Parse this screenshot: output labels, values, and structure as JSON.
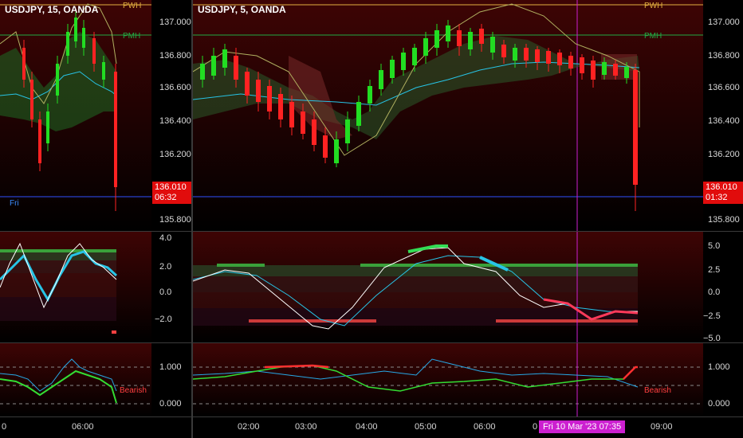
{
  "left": {
    "title": "USDJPY, 15, OANDA",
    "price_axis": [
      "137.000",
      "136.800",
      "136.600",
      "136.400",
      "136.200",
      "135.800"
    ],
    "last_price": "136.010",
    "countdown": "06:32",
    "session_label": "Fri",
    "pwh_label": "PWH",
    "pmh_label": "PMH",
    "osc_axis": [
      "4.0",
      "2.0",
      "0.0",
      "−2.0"
    ],
    "status": "Bearish",
    "bottom_axis": [
      "1.000",
      "0.000"
    ],
    "time_axis": [
      "0",
      "06:00"
    ]
  },
  "right": {
    "title": "USDJPY, 5, OANDA",
    "price_axis": [
      "137.000",
      "136.800",
      "136.600",
      "136.400",
      "136.200",
      "135.800"
    ],
    "last_price": "136.010",
    "countdown": "01:32",
    "pwh_label": "PWH",
    "pmh_label": "PMH",
    "osc_axis": [
      "5.0",
      "2.5",
      "0.0",
      "−2.5",
      "−5.0"
    ],
    "status": "Bearish",
    "bottom_axis": [
      "1.000",
      "0.000"
    ],
    "time_axis": [
      "02:00",
      "03:00",
      "04:00",
      "05:00",
      "06:00",
      "0",
      "09:00"
    ],
    "crosshair_time": "Fri 10 Mar '23   07:35"
  },
  "colors": {
    "bull": "#22dd22",
    "bear": "#ff2222",
    "pwh": "#e3b040",
    "pmh": "#22aa44",
    "osc_white": "#ffffff",
    "osc_cyan": "#27c4e6",
    "crosshair": "#cc1fd0"
  }
}
